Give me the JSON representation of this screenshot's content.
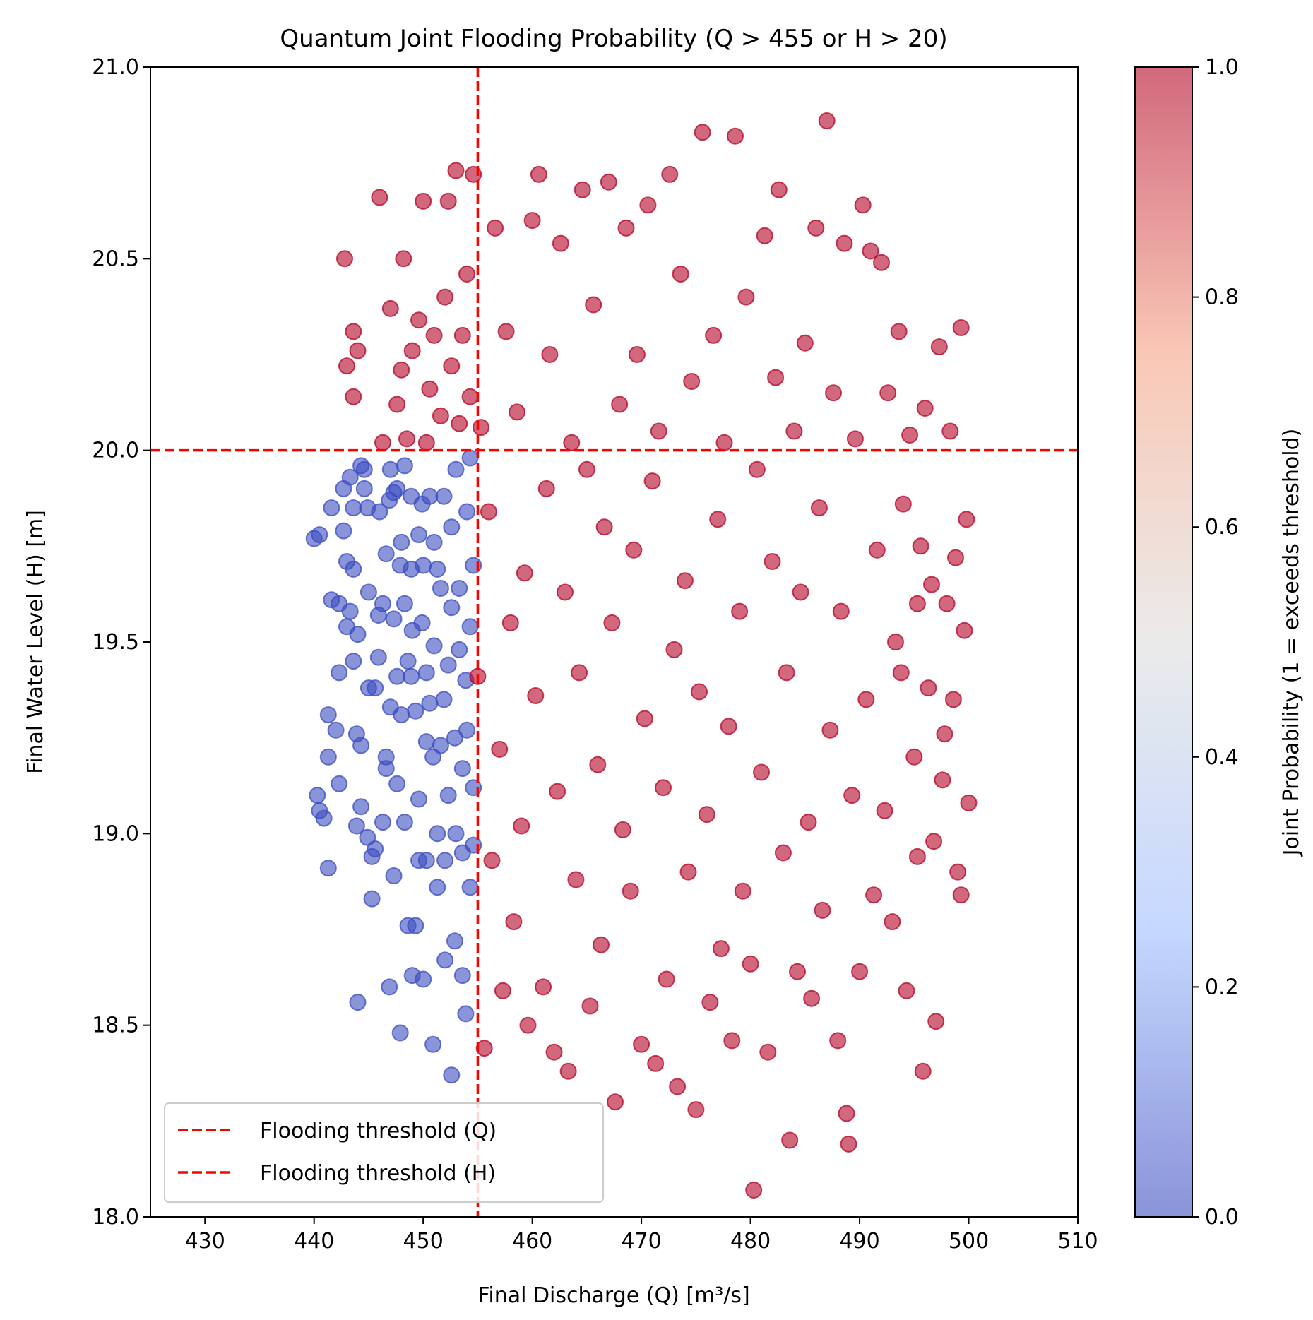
{
  "chart_data": {
    "type": "scatter",
    "title": "Quantum Joint Flooding Probability (Q > 455 or H > 20)",
    "xlabel": "Final Discharge (Q) [m³/s]",
    "ylabel": "Final Water Level (H) [m]",
    "xlim": [
      425,
      510
    ],
    "ylim": [
      18.0,
      21.0
    ],
    "xticks": [
      "430",
      "440",
      "450",
      "460",
      "470",
      "480",
      "490",
      "500",
      "510"
    ],
    "yticks": [
      "18.0",
      "18.5",
      "19.0",
      "19.5",
      "20.0",
      "20.5",
      "21.0"
    ],
    "grid": false,
    "legend_placement": "lower-left",
    "thresholds": [
      {
        "name": "Flooding threshold (Q)",
        "axis": "x",
        "value": 455,
        "color": "#ff0000"
      },
      {
        "name": "Flooding threshold (H)",
        "axis": "y",
        "value": 20.0,
        "color": "#ff0000"
      }
    ],
    "colorbar": {
      "label": "Joint Probability (1 = exceeds threshold)",
      "colormap": "coolwarm",
      "ticks": [
        "0.0",
        "0.2",
        "0.4",
        "0.6",
        "0.8",
        "1.0"
      ],
      "low_color": "#3b4cc0",
      "mid_color": "#dddddd",
      "high_color": "#b40426"
    },
    "series": [
      {
        "color": "#3b4cc0",
        "probability": 0,
        "points": [
          [
            440.0,
            19.77
          ],
          [
            440.5,
            19.78
          ],
          [
            440.3,
            19.1
          ],
          [
            440.5,
            19.06
          ],
          [
            440.9,
            19.04
          ],
          [
            441.3,
            18.91
          ],
          [
            441.3,
            19.31
          ],
          [
            441.3,
            19.2
          ],
          [
            441.6,
            19.85
          ],
          [
            441.6,
            19.61
          ],
          [
            442.0,
            19.27
          ],
          [
            442.3,
            19.13
          ],
          [
            442.3,
            19.42
          ],
          [
            442.3,
            19.6
          ],
          [
            442.7,
            19.79
          ],
          [
            442.7,
            19.9
          ],
          [
            443.0,
            19.71
          ],
          [
            443.0,
            19.54
          ],
          [
            443.3,
            19.93
          ],
          [
            443.3,
            19.58
          ],
          [
            443.6,
            19.85
          ],
          [
            443.6,
            19.45
          ],
          [
            443.6,
            19.69
          ],
          [
            443.9,
            19.26
          ],
          [
            443.9,
            19.02
          ],
          [
            444.0,
            19.52
          ],
          [
            444.0,
            18.56
          ],
          [
            444.3,
            19.07
          ],
          [
            444.3,
            19.23
          ],
          [
            444.3,
            19.96
          ],
          [
            444.6,
            19.9
          ],
          [
            444.6,
            19.95
          ],
          [
            444.9,
            18.99
          ],
          [
            444.9,
            19.85
          ],
          [
            445.0,
            19.63
          ],
          [
            445.0,
            19.38
          ],
          [
            445.3,
            18.83
          ],
          [
            445.3,
            18.94
          ],
          [
            445.6,
            18.96
          ],
          [
            445.6,
            19.38
          ],
          [
            445.9,
            19.46
          ],
          [
            445.9,
            19.57
          ],
          [
            446.0,
            19.84
          ],
          [
            446.3,
            19.03
          ],
          [
            446.3,
            19.6
          ],
          [
            446.6,
            19.73
          ],
          [
            446.6,
            19.2
          ],
          [
            446.6,
            19.17
          ],
          [
            446.9,
            19.87
          ],
          [
            446.9,
            18.6
          ],
          [
            447.0,
            19.95
          ],
          [
            447.0,
            19.33
          ],
          [
            447.3,
            19.56
          ],
          [
            447.3,
            19.89
          ],
          [
            447.3,
            18.89
          ],
          [
            447.6,
            19.9
          ],
          [
            447.6,
            19.13
          ],
          [
            447.6,
            19.41
          ],
          [
            447.9,
            19.7
          ],
          [
            447.9,
            18.48
          ],
          [
            448.0,
            19.76
          ],
          [
            448.0,
            19.31
          ],
          [
            448.3,
            19.6
          ],
          [
            448.3,
            19.03
          ],
          [
            448.3,
            19.96
          ],
          [
            448.6,
            19.45
          ],
          [
            448.6,
            18.76
          ],
          [
            448.9,
            19.88
          ],
          [
            448.9,
            19.69
          ],
          [
            448.9,
            19.41
          ],
          [
            449.0,
            19.53
          ],
          [
            449.0,
            18.63
          ],
          [
            449.3,
            19.32
          ],
          [
            449.3,
            18.76
          ],
          [
            449.6,
            19.78
          ],
          [
            449.6,
            18.93
          ],
          [
            449.6,
            19.09
          ],
          [
            449.9,
            19.86
          ],
          [
            449.9,
            19.55
          ],
          [
            450.0,
            19.7
          ],
          [
            450.0,
            18.62
          ],
          [
            450.3,
            19.42
          ],
          [
            450.3,
            19.24
          ],
          [
            450.3,
            18.93
          ],
          [
            450.6,
            19.88
          ],
          [
            450.6,
            19.34
          ],
          [
            450.9,
            19.2
          ],
          [
            450.9,
            18.45
          ],
          [
            451.0,
            19.76
          ],
          [
            451.0,
            19.49
          ],
          [
            451.3,
            19.69
          ],
          [
            451.3,
            18.86
          ],
          [
            451.3,
            19.0
          ],
          [
            451.6,
            19.23
          ],
          [
            451.6,
            19.64
          ],
          [
            451.9,
            19.35
          ],
          [
            451.9,
            19.88
          ],
          [
            452.0,
            18.93
          ],
          [
            452.0,
            18.67
          ],
          [
            452.3,
            19.44
          ],
          [
            452.3,
            19.1
          ],
          [
            452.6,
            19.8
          ],
          [
            452.6,
            19.59
          ],
          [
            452.6,
            18.37
          ],
          [
            452.9,
            19.25
          ],
          [
            452.9,
            18.72
          ],
          [
            453.0,
            19.95
          ],
          [
            453.0,
            19.0
          ],
          [
            453.3,
            19.64
          ],
          [
            453.3,
            19.48
          ],
          [
            453.6,
            18.63
          ],
          [
            453.6,
            18.95
          ],
          [
            453.6,
            19.17
          ],
          [
            453.9,
            19.4
          ],
          [
            453.9,
            18.53
          ],
          [
            454.0,
            19.84
          ],
          [
            454.0,
            19.27
          ],
          [
            454.3,
            19.98
          ],
          [
            454.3,
            18.86
          ],
          [
            454.3,
            19.54
          ],
          [
            454.6,
            19.12
          ],
          [
            454.6,
            18.97
          ],
          [
            454.6,
            19.7
          ]
        ]
      },
      {
        "color": "#b40426",
        "probability": 1,
        "points": [
          [
            442.8,
            20.5
          ],
          [
            443.0,
            20.22
          ],
          [
            443.6,
            20.31
          ],
          [
            443.6,
            20.14
          ],
          [
            444.0,
            20.26
          ],
          [
            446.0,
            20.66
          ],
          [
            446.3,
            20.02
          ],
          [
            447.0,
            20.37
          ],
          [
            447.6,
            20.12
          ],
          [
            448.0,
            20.21
          ],
          [
            448.2,
            20.5
          ],
          [
            448.5,
            20.03
          ],
          [
            449.0,
            20.26
          ],
          [
            449.6,
            20.34
          ],
          [
            450.0,
            20.65
          ],
          [
            450.3,
            20.02
          ],
          [
            450.6,
            20.16
          ],
          [
            451.0,
            20.3
          ],
          [
            451.6,
            20.09
          ],
          [
            452.0,
            20.4
          ],
          [
            452.3,
            20.65
          ],
          [
            452.6,
            20.22
          ],
          [
            453.0,
            20.73
          ],
          [
            453.3,
            20.07
          ],
          [
            453.6,
            20.3
          ],
          [
            454.0,
            20.46
          ],
          [
            454.3,
            20.14
          ],
          [
            454.6,
            20.72
          ],
          [
            455.0,
            19.41
          ],
          [
            455.3,
            20.06
          ],
          [
            455.6,
            18.44
          ],
          [
            456.0,
            19.84
          ],
          [
            456.3,
            18.93
          ],
          [
            456.6,
            20.58
          ],
          [
            457.0,
            19.22
          ],
          [
            457.3,
            18.59
          ],
          [
            457.6,
            20.31
          ],
          [
            458.0,
            19.55
          ],
          [
            458.3,
            18.77
          ],
          [
            458.6,
            20.1
          ],
          [
            459.0,
            19.02
          ],
          [
            459.3,
            19.68
          ],
          [
            459.6,
            18.5
          ],
          [
            460.0,
            20.6
          ],
          [
            460.3,
            19.36
          ],
          [
            460.6,
            20.72
          ],
          [
            461.0,
            18.6
          ],
          [
            461.3,
            19.9
          ],
          [
            461.6,
            20.25
          ],
          [
            462.0,
            18.43
          ],
          [
            462.3,
            19.11
          ],
          [
            462.6,
            20.54
          ],
          [
            463.0,
            19.63
          ],
          [
            463.3,
            18.38
          ],
          [
            463.6,
            20.02
          ],
          [
            464.0,
            18.88
          ],
          [
            464.3,
            19.42
          ],
          [
            464.6,
            20.68
          ],
          [
            465.0,
            19.95
          ],
          [
            465.3,
            18.55
          ],
          [
            465.6,
            20.38
          ],
          [
            466.0,
            19.18
          ],
          [
            466.3,
            18.71
          ],
          [
            466.6,
            19.8
          ],
          [
            467.0,
            20.7
          ],
          [
            467.3,
            19.55
          ],
          [
            467.6,
            18.3
          ],
          [
            468.0,
            20.12
          ],
          [
            468.3,
            19.01
          ],
          [
            468.6,
            20.58
          ],
          [
            469.0,
            18.85
          ],
          [
            469.3,
            19.74
          ],
          [
            469.6,
            20.25
          ],
          [
            470.0,
            18.45
          ],
          [
            470.3,
            19.3
          ],
          [
            470.6,
            20.64
          ],
          [
            471.0,
            19.92
          ],
          [
            471.3,
            18.4
          ],
          [
            471.6,
            20.05
          ],
          [
            472.0,
            19.12
          ],
          [
            472.3,
            18.62
          ],
          [
            472.6,
            20.72
          ],
          [
            473.0,
            19.48
          ],
          [
            473.3,
            18.34
          ],
          [
            473.6,
            20.46
          ],
          [
            474.0,
            19.66
          ],
          [
            474.3,
            18.9
          ],
          [
            474.6,
            20.18
          ],
          [
            475.0,
            18.28
          ],
          [
            475.3,
            19.37
          ],
          [
            475.6,
            20.83
          ],
          [
            476.0,
            19.05
          ],
          [
            476.3,
            18.56
          ],
          [
            476.6,
            20.3
          ],
          [
            477.0,
            19.82
          ],
          [
            477.3,
            18.7
          ],
          [
            477.6,
            20.02
          ],
          [
            478.0,
            19.28
          ],
          [
            478.3,
            18.46
          ],
          [
            478.6,
            20.82
          ],
          [
            479.0,
            19.58
          ],
          [
            479.3,
            18.85
          ],
          [
            479.6,
            20.4
          ],
          [
            480.0,
            18.66
          ],
          [
            480.3,
            18.07
          ],
          [
            480.6,
            19.95
          ],
          [
            481.0,
            19.16
          ],
          [
            481.3,
            20.56
          ],
          [
            481.6,
            18.43
          ],
          [
            482.0,
            19.71
          ],
          [
            482.3,
            20.19
          ],
          [
            482.6,
            20.68
          ],
          [
            483.0,
            18.95
          ],
          [
            483.3,
            19.42
          ],
          [
            483.6,
            18.2
          ],
          [
            484.0,
            20.05
          ],
          [
            484.3,
            18.64
          ],
          [
            484.6,
            19.63
          ],
          [
            485.0,
            20.28
          ],
          [
            485.3,
            19.03
          ],
          [
            485.6,
            18.57
          ],
          [
            486.0,
            20.58
          ],
          [
            486.3,
            19.85
          ],
          [
            486.6,
            18.8
          ],
          [
            487.0,
            20.86
          ],
          [
            487.3,
            19.27
          ],
          [
            487.6,
            20.15
          ],
          [
            488.0,
            18.46
          ],
          [
            488.3,
            19.58
          ],
          [
            488.6,
            20.54
          ],
          [
            488.8,
            18.27
          ],
          [
            489.0,
            18.19
          ],
          [
            489.3,
            19.1
          ],
          [
            489.6,
            20.03
          ],
          [
            490.0,
            18.64
          ],
          [
            490.3,
            20.64
          ],
          [
            490.6,
            19.35
          ],
          [
            491.0,
            20.52
          ],
          [
            491.3,
            18.84
          ],
          [
            491.6,
            19.74
          ],
          [
            492.0,
            20.49
          ],
          [
            492.3,
            19.06
          ],
          [
            492.6,
            20.15
          ],
          [
            493.0,
            18.77
          ],
          [
            493.3,
            19.5
          ],
          [
            493.6,
            20.31
          ],
          [
            494.0,
            19.86
          ],
          [
            494.3,
            18.59
          ],
          [
            494.6,
            20.04
          ],
          [
            495.0,
            19.2
          ],
          [
            495.3,
            18.94
          ],
          [
            495.6,
            19.75
          ],
          [
            495.8,
            18.38
          ],
          [
            496.0,
            20.11
          ],
          [
            496.3,
            19.38
          ],
          [
            496.6,
            19.65
          ],
          [
            497.0,
            18.51
          ],
          [
            497.3,
            20.27
          ],
          [
            497.6,
            19.14
          ],
          [
            498.0,
            19.6
          ],
          [
            498.3,
            20.05
          ],
          [
            498.6,
            19.35
          ],
          [
            499.0,
            18.9
          ],
          [
            499.3,
            20.32
          ],
          [
            499.6,
            19.53
          ],
          [
            499.8,
            19.82
          ],
          [
            500.0,
            19.08
          ],
          [
            499.3,
            18.84
          ],
          [
            498.8,
            19.72
          ],
          [
            497.8,
            19.26
          ],
          [
            496.8,
            18.98
          ],
          [
            495.3,
            19.6
          ],
          [
            493.8,
            19.42
          ]
        ]
      }
    ]
  }
}
